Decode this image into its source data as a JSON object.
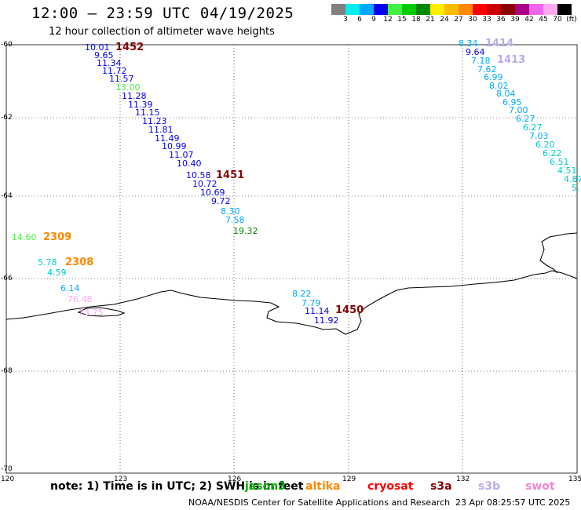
{
  "header": {
    "title": "12:00 — 23:59 UTC 04/19/2025",
    "subtitle": "12 hour collection of altimeter wave heights"
  },
  "colors": {
    "jason3": "#00aa00",
    "altika": "#ff8800",
    "cryosat": "#ff0000",
    "s3a": "#880000",
    "s3b": "#bbaaee",
    "swot": "#ee88cc",
    "coast": "#000000",
    "grid": "#000000"
  },
  "scale": {
    "colors": [
      "#808080",
      "#00eeee",
      "#00aaff",
      "#0000ee",
      "#44ee44",
      "#00cc00",
      "#008800",
      "#ffee00",
      "#ffbb00",
      "#ff8800",
      "#ff0000",
      "#cc0000",
      "#880000",
      "#aa0088",
      "#ee66ee",
      "#ffaaee",
      "#000000"
    ],
    "labels": [
      "3",
      "6",
      "9",
      "12",
      "15",
      "18",
      "21",
      "24",
      "27",
      "30",
      "33",
      "36",
      "39",
      "42",
      "45",
      "70",
      "(ft)"
    ]
  },
  "axes": {
    "lat_labels": [
      "-60",
      "-62",
      "-64",
      "-66",
      "-68",
      "-70"
    ],
    "lon_labels": [
      "120",
      "123",
      "126",
      "129",
      "132",
      "135"
    ]
  },
  "passes": [
    {
      "id": "1452",
      "color": "#880000"
    },
    {
      "id": "1451",
      "color": "#880000"
    },
    {
      "id": "2309",
      "color": "#ff8800"
    },
    {
      "id": "2308",
      "color": "#ff8800"
    },
    {
      "id": "1450",
      "color": "#880000"
    },
    {
      "id": "1414",
      "color": "#bbaaee"
    },
    {
      "id": "1413",
      "color": "#bbaaee"
    }
  ],
  "observations": [
    {
      "v": "10.01",
      "c": "#0000ee"
    },
    {
      "v": "9.65",
      "c": "#0000ee"
    },
    {
      "v": "11.34",
      "c": "#0000ee"
    },
    {
      "v": "11.72",
      "c": "#0000ee"
    },
    {
      "v": "11.57",
      "c": "#0000ee"
    },
    {
      "v": "13.00",
      "c": "#44ee44"
    },
    {
      "v": "11.28",
      "c": "#0000ee"
    },
    {
      "v": "11.39",
      "c": "#0000ee"
    },
    {
      "v": "11.15",
      "c": "#0000ee"
    },
    {
      "v": "11.23",
      "c": "#0000ee"
    },
    {
      "v": "11.81",
      "c": "#0000ee"
    },
    {
      "v": "11.49",
      "c": "#0000ee"
    },
    {
      "v": "10.99",
      "c": "#0000ee"
    },
    {
      "v": "11.07",
      "c": "#0000ee"
    },
    {
      "v": "10.40",
      "c": "#0000ee"
    },
    {
      "v": "10.58",
      "c": "#0000ee"
    },
    {
      "v": "10.72",
      "c": "#0000ee"
    },
    {
      "v": "10.69",
      "c": "#0000ee"
    },
    {
      "v": "9.72",
      "c": "#0000ee"
    },
    {
      "v": "8.30",
      "c": "#00aaff"
    },
    {
      "v": "7.58",
      "c": "#00aaff"
    },
    {
      "v": "19.32",
      "c": "#008800"
    },
    {
      "v": "14.60",
      "c": "#44ee44"
    },
    {
      "v": "5.78",
      "c": "#00cccc"
    },
    {
      "v": "4.59",
      "c": "#00cccc"
    },
    {
      "v": "6.14",
      "c": "#00aaff"
    },
    {
      "v": "76.48",
      "c": "#ffaaee"
    },
    {
      "v": "73.75",
      "c": "#ffaaee"
    },
    {
      "v": "8.22",
      "c": "#00aaff"
    },
    {
      "v": "7.79",
      "c": "#00aaff"
    },
    {
      "v": "11.14",
      "c": "#0000ee"
    },
    {
      "v": "11.92",
      "c": "#0000ee"
    },
    {
      "v": "8.34",
      "c": "#00aaff"
    },
    {
      "v": "9.64",
      "c": "#0000ee"
    },
    {
      "v": "7.18",
      "c": "#00aaff"
    },
    {
      "v": "7.62",
      "c": "#00aaff"
    },
    {
      "v": "6.99",
      "c": "#00aaff"
    },
    {
      "v": "8.02",
      "c": "#00aaff"
    },
    {
      "v": "8.04",
      "c": "#00aaff"
    },
    {
      "v": "6.95",
      "c": "#00aaff"
    },
    {
      "v": "7.00",
      "c": "#00aaff"
    },
    {
      "v": "6.27",
      "c": "#00aaff"
    },
    {
      "v": "6.27",
      "c": "#00cccc"
    },
    {
      "v": "7.03",
      "c": "#00aaff"
    },
    {
      "v": "6.20",
      "c": "#00cccc"
    },
    {
      "v": "6.22",
      "c": "#00cccc"
    },
    {
      "v": "6.51",
      "c": "#00cccc"
    },
    {
      "v": "4.51",
      "c": "#00cccc"
    },
    {
      "v": "4.87",
      "c": "#00cccc"
    },
    {
      "v": "5.",
      "c": "#00cccc"
    }
  ],
  "legend": {
    "note": "note: 1) Time is in UTC; 2) SWH is in feet",
    "satellites": [
      {
        "name": "jason3",
        "color": "#00aa00"
      },
      {
        "name": "altika",
        "color": "#ff8800"
      },
      {
        "name": "cryosat",
        "color": "#ff0000"
      },
      {
        "name": "s3a",
        "color": "#880000"
      },
      {
        "name": "s3b",
        "color": "#bbaaee"
      },
      {
        "name": "swot",
        "color": "#ee88cc"
      }
    ]
  },
  "footer": {
    "credit": "NOAA/NESDIS Center for Satellite Applications and Research",
    "timestamp": "23 Apr 08:25:57 UTC 2025"
  }
}
